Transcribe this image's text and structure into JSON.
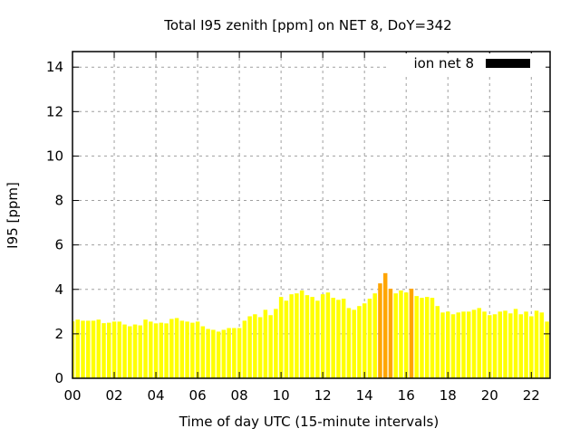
{
  "chart_data": {
    "type": "bar",
    "title": "Total I95 zenith [ppm] on NET 8, DoY=342",
    "xlabel": "Time of day UTC (15-minute intervals)",
    "ylabel": "I95 [ppm]",
    "xlim": [
      0,
      22.9
    ],
    "ylim": [
      0,
      14.7
    ],
    "grid": true,
    "legend": {
      "label": "ion net 8",
      "placement": "top-right",
      "color": "#000000"
    },
    "x_ticks": [
      0,
      2,
      4,
      6,
      8,
      10,
      12,
      14,
      16,
      18,
      20,
      22
    ],
    "x_tick_labels": [
      "00",
      "02",
      "04",
      "06",
      "08",
      "10",
      "12",
      "14",
      "16",
      "18",
      "20",
      "22"
    ],
    "y_ticks": [
      0,
      2,
      4,
      6,
      8,
      10,
      12,
      14
    ],
    "y_tick_labels": [
      "0",
      "2",
      "4",
      "6",
      "8",
      "10",
      "12",
      "14"
    ],
    "interval_hours": 0.25,
    "colors": {
      "normal": "#ffff00",
      "high": "#ffa500",
      "threshold": 4.0
    },
    "values": [
      2.56,
      2.64,
      2.59,
      2.59,
      2.59,
      2.64,
      2.48,
      2.5,
      2.55,
      2.55,
      2.42,
      2.34,
      2.42,
      2.38,
      2.64,
      2.55,
      2.47,
      2.5,
      2.47,
      2.67,
      2.71,
      2.59,
      2.55,
      2.5,
      2.55,
      2.34,
      2.22,
      2.18,
      2.1,
      2.18,
      2.26,
      2.26,
      2.26,
      2.59,
      2.79,
      2.88,
      2.75,
      3.08,
      2.84,
      3.12,
      3.66,
      3.49,
      3.78,
      3.82,
      3.95,
      3.74,
      3.66,
      3.49,
      3.78,
      3.86,
      3.62,
      3.53,
      3.58,
      3.16,
      3.08,
      3.25,
      3.37,
      3.58,
      3.82,
      4.27,
      4.73,
      4.03,
      3.82,
      3.95,
      3.86,
      4.03,
      3.7,
      3.62,
      3.66,
      3.62,
      3.25,
      2.96,
      3.0,
      2.88,
      2.96,
      3.0,
      3.0,
      3.08,
      3.16,
      3.0,
      2.84,
      2.88,
      3.0,
      3.04,
      2.92,
      3.12,
      2.88,
      3.0,
      2.79,
      3.04,
      2.96,
      2.55
    ]
  }
}
